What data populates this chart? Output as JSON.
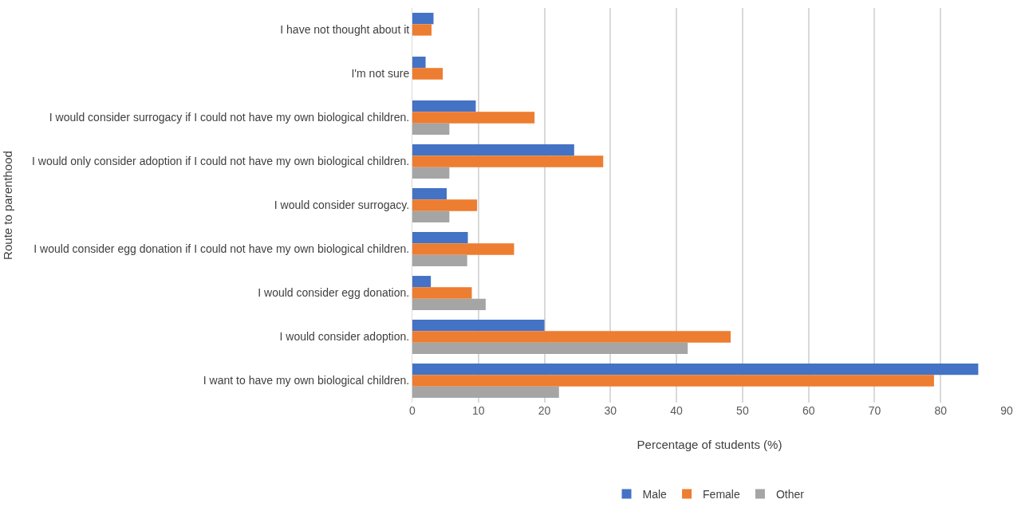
{
  "chart_data": {
    "type": "bar",
    "orientation": "horizontal",
    "xlabel": "Percentage of students (%)",
    "ylabel": "Route to parenthood",
    "categories": [
      "I have not thought about it",
      "I'm not sure",
      "I would consider surrogacy if I could not have my own biological children.",
      "I would only consider adoption if I could not have my own biological children.",
      "I would consider surrogacy.",
      "I would consider egg donation if I could not have my own biological children.",
      "I would consider egg donation.",
      "I would consider adoption.",
      "I want to have my own biological children."
    ],
    "series": [
      {
        "name": "Male",
        "color": "#4472c4",
        "values": [
          3.2,
          2.0,
          9.6,
          24.5,
          5.2,
          8.4,
          2.8,
          20.0,
          85.7
        ]
      },
      {
        "name": "Female",
        "color": "#ed7d31",
        "values": [
          2.9,
          4.6,
          18.5,
          28.9,
          9.8,
          15.4,
          9.0,
          48.2,
          79.0
        ]
      },
      {
        "name": "Other",
        "color": "#a5a5a5",
        "values": [
          null,
          null,
          5.6,
          5.6,
          5.6,
          8.3,
          11.1,
          41.7,
          22.2
        ]
      }
    ],
    "xlim": [
      0,
      90
    ],
    "xticks": [
      0,
      10,
      20,
      30,
      40,
      50,
      60,
      70,
      80,
      90
    ],
    "grid": "x",
    "legend": "bottom"
  }
}
